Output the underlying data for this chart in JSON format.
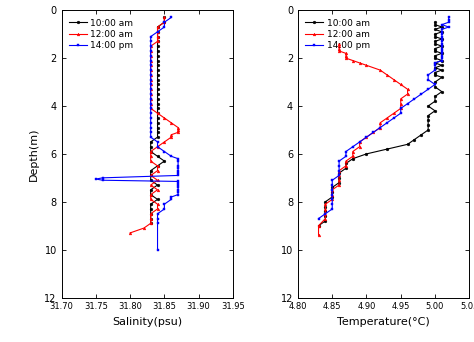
{
  "title_left": "Salinity(psu)",
  "title_right": "Temperature(°C)",
  "ylabel": "Depth(m)",
  "depth_range": [
    0,
    12
  ],
  "sal_xlim": [
    31.7,
    31.95
  ],
  "sal_xticks": [
    31.7,
    31.75,
    31.8,
    31.85,
    31.9,
    31.95
  ],
  "sal_xtick_labels": [
    "31.70",
    "31.75",
    "31.80",
    "31.85",
    "31.90",
    "31.95"
  ],
  "temp_xlim": [
    4.8,
    5.05
  ],
  "temp_xticks": [
    4.8,
    4.85,
    4.9,
    4.95,
    5.0,
    5.05
  ],
  "temp_xtick_labels": [
    "4.80",
    "4.85",
    "4.90",
    "4.95",
    "5.00",
    "5.05"
  ],
  "yticks": [
    0,
    2,
    4,
    6,
    8,
    10,
    12
  ],
  "legend_labels": [
    "10:00 am",
    "12:00 am",
    "14:00 pm"
  ],
  "colors": [
    "black",
    "red",
    "blue"
  ],
  "markersize": 2,
  "linewidth": 0.8,
  "sal_10_depth": [
    0.3,
    0.5,
    0.7,
    0.9,
    1.1,
    1.3,
    1.5,
    1.7,
    1.9,
    2.1,
    2.3,
    2.5,
    2.7,
    2.9,
    3.1,
    3.3,
    3.5,
    3.7,
    3.9,
    4.1,
    4.3,
    4.5,
    4.7,
    4.9,
    5.1,
    5.3,
    5.5,
    5.7,
    5.9,
    6.1,
    6.3,
    6.5,
    6.7,
    6.9,
    7.1,
    7.3,
    7.5,
    7.7,
    7.9,
    8.1,
    8.3,
    8.5,
    8.7,
    8.9
  ],
  "sal_10_val": [
    31.85,
    31.85,
    31.84,
    31.84,
    31.84,
    31.84,
    31.84,
    31.84,
    31.84,
    31.84,
    31.84,
    31.84,
    31.84,
    31.84,
    31.84,
    31.84,
    31.84,
    31.84,
    31.84,
    31.84,
    31.84,
    31.84,
    31.84,
    31.84,
    31.84,
    31.84,
    31.83,
    31.83,
    31.83,
    31.84,
    31.85,
    31.84,
    31.83,
    31.83,
    31.83,
    31.84,
    31.83,
    31.83,
    31.84,
    31.83,
    31.83,
    31.83,
    31.83,
    31.83
  ],
  "sal_12_depth": [
    0.3,
    0.5,
    0.7,
    0.9,
    1.1,
    1.3,
    1.5,
    1.7,
    1.9,
    2.1,
    2.3,
    2.5,
    2.7,
    2.9,
    3.1,
    3.3,
    3.5,
    3.7,
    3.9,
    4.1,
    4.3,
    4.5,
    4.7,
    4.9,
    5.0,
    5.1,
    5.2,
    5.3,
    5.5,
    5.7,
    5.9,
    6.1,
    6.3,
    6.5,
    6.7,
    6.9,
    7.1,
    7.3,
    7.5,
    7.7,
    7.9,
    8.1,
    8.3,
    8.5,
    8.7,
    8.9,
    9.1,
    9.3
  ],
  "sal_12_val": [
    31.85,
    31.85,
    31.84,
    31.84,
    31.84,
    31.84,
    31.83,
    31.83,
    31.83,
    31.83,
    31.83,
    31.83,
    31.83,
    31.83,
    31.83,
    31.83,
    31.83,
    31.83,
    31.83,
    31.83,
    31.84,
    31.85,
    31.86,
    31.87,
    31.87,
    31.87,
    31.86,
    31.86,
    31.85,
    31.84,
    31.83,
    31.83,
    31.83,
    31.84,
    31.84,
    31.83,
    31.84,
    31.83,
    31.84,
    31.83,
    31.83,
    31.84,
    31.84,
    31.83,
    31.83,
    31.83,
    31.82,
    31.8
  ],
  "sal_14_depth": [
    0.3,
    0.5,
    0.7,
    0.9,
    1.1,
    1.3,
    1.5,
    1.7,
    1.9,
    2.1,
    2.3,
    2.5,
    2.7,
    2.9,
    3.1,
    3.3,
    3.5,
    3.7,
    3.9,
    4.1,
    4.3,
    4.5,
    4.7,
    4.9,
    5.1,
    5.3,
    5.5,
    5.7,
    5.9,
    6.1,
    6.2,
    6.3,
    6.5,
    6.6,
    6.7,
    6.8,
    6.9,
    7.0,
    7.05,
    7.1,
    7.15,
    7.2,
    7.3,
    7.4,
    7.5,
    7.6,
    7.7,
    7.8,
    7.9,
    8.1,
    8.3,
    8.5,
    8.7,
    8.9,
    10.0
  ],
  "sal_14_val": [
    31.86,
    31.85,
    31.85,
    31.84,
    31.83,
    31.83,
    31.83,
    31.83,
    31.83,
    31.83,
    31.83,
    31.83,
    31.83,
    31.83,
    31.83,
    31.83,
    31.83,
    31.83,
    31.83,
    31.83,
    31.83,
    31.83,
    31.83,
    31.83,
    31.83,
    31.83,
    31.84,
    31.84,
    31.85,
    31.86,
    31.87,
    31.87,
    31.87,
    31.87,
    31.87,
    31.87,
    31.87,
    31.76,
    31.75,
    31.76,
    31.87,
    31.87,
    31.87,
    31.87,
    31.87,
    31.87,
    31.87,
    31.86,
    31.86,
    31.85,
    31.85,
    31.84,
    31.84,
    31.84,
    31.84
  ],
  "tmp_10_depth": [
    0.5,
    0.6,
    0.7,
    0.8,
    0.9,
    1.0,
    1.1,
    1.2,
    1.3,
    1.4,
    1.5,
    1.6,
    1.7,
    1.8,
    1.9,
    2.0,
    2.1,
    2.2,
    2.3,
    2.4,
    2.5,
    2.6,
    2.7,
    2.8,
    3.0,
    3.2,
    3.4,
    3.6,
    3.8,
    4.0,
    4.2,
    4.4,
    4.6,
    4.8,
    5.0,
    5.2,
    5.4,
    5.6,
    5.8,
    6.0,
    6.2,
    6.4,
    6.6,
    6.8,
    7.0,
    7.2,
    7.4,
    7.6,
    7.8,
    8.0,
    8.2,
    8.4,
    8.6,
    8.8,
    9.0
  ],
  "tmp_10_val": [
    5.0,
    5.0,
    5.01,
    5.0,
    5.01,
    5.0,
    5.0,
    5.01,
    5.0,
    5.0,
    5.01,
    5.0,
    5.0,
    5.01,
    5.0,
    5.0,
    5.01,
    5.0,
    5.01,
    5.0,
    5.01,
    5.0,
    5.0,
    5.01,
    5.0,
    5.0,
    5.01,
    5.0,
    5.0,
    4.99,
    5.0,
    4.99,
    4.99,
    4.99,
    4.99,
    4.98,
    4.97,
    4.96,
    4.93,
    4.9,
    4.88,
    4.87,
    4.87,
    4.86,
    4.86,
    4.86,
    4.85,
    4.85,
    4.85,
    4.84,
    4.84,
    4.84,
    4.84,
    4.84,
    4.83
  ],
  "tmp_12_depth": [
    1.4,
    1.5,
    1.6,
    1.7,
    1.8,
    1.9,
    2.0,
    2.1,
    2.2,
    2.3,
    2.5,
    2.7,
    2.9,
    3.1,
    3.3,
    3.5,
    3.7,
    3.9,
    4.1,
    4.3,
    4.5,
    4.7,
    4.9,
    5.1,
    5.3,
    5.5,
    5.7,
    5.9,
    6.1,
    6.3,
    6.5,
    6.7,
    6.9,
    7.1,
    7.3,
    7.5,
    7.7,
    7.9,
    8.1,
    8.3,
    8.5,
    8.7,
    9.0,
    9.4
  ],
  "tmp_12_val": [
    4.86,
    4.86,
    4.86,
    4.86,
    4.87,
    4.87,
    4.87,
    4.88,
    4.89,
    4.9,
    4.92,
    4.93,
    4.94,
    4.95,
    4.96,
    4.96,
    4.95,
    4.95,
    4.95,
    4.94,
    4.93,
    4.92,
    4.92,
    4.91,
    4.9,
    4.89,
    4.89,
    4.88,
    4.88,
    4.87,
    4.87,
    4.86,
    4.86,
    4.86,
    4.86,
    4.85,
    4.85,
    4.85,
    4.84,
    4.84,
    4.84,
    4.84,
    4.83,
    4.83
  ],
  "tmp_14_depth": [
    0.3,
    0.4,
    0.5,
    0.6,
    0.7,
    0.8,
    0.9,
    1.0,
    1.1,
    1.2,
    1.3,
    1.4,
    1.5,
    1.6,
    1.7,
    1.8,
    1.9,
    2.0,
    2.1,
    2.2,
    2.3,
    2.5,
    2.7,
    2.9,
    3.1,
    3.3,
    3.5,
    3.7,
    3.9,
    4.1,
    4.3,
    4.5,
    4.7,
    4.9,
    5.1,
    5.3,
    5.5,
    5.7,
    5.9,
    6.1,
    6.3,
    6.5,
    6.7,
    6.9,
    7.1,
    7.3,
    7.5,
    7.7,
    7.9,
    8.1,
    8.3,
    8.5,
    8.7
  ],
  "tmp_14_val": [
    5.02,
    5.02,
    5.02,
    5.01,
    5.02,
    5.01,
    5.01,
    5.01,
    5.01,
    5.01,
    5.01,
    5.01,
    5.01,
    5.01,
    5.01,
    5.01,
    5.01,
    5.01,
    5.01,
    5.0,
    5.0,
    5.0,
    4.99,
    4.99,
    5.0,
    4.99,
    4.98,
    4.97,
    4.96,
    4.95,
    4.95,
    4.94,
    4.93,
    4.92,
    4.91,
    4.9,
    4.89,
    4.88,
    4.87,
    4.87,
    4.86,
    4.86,
    4.86,
    4.86,
    4.85,
    4.85,
    4.85,
    4.85,
    4.85,
    4.85,
    4.85,
    4.84,
    4.83
  ]
}
